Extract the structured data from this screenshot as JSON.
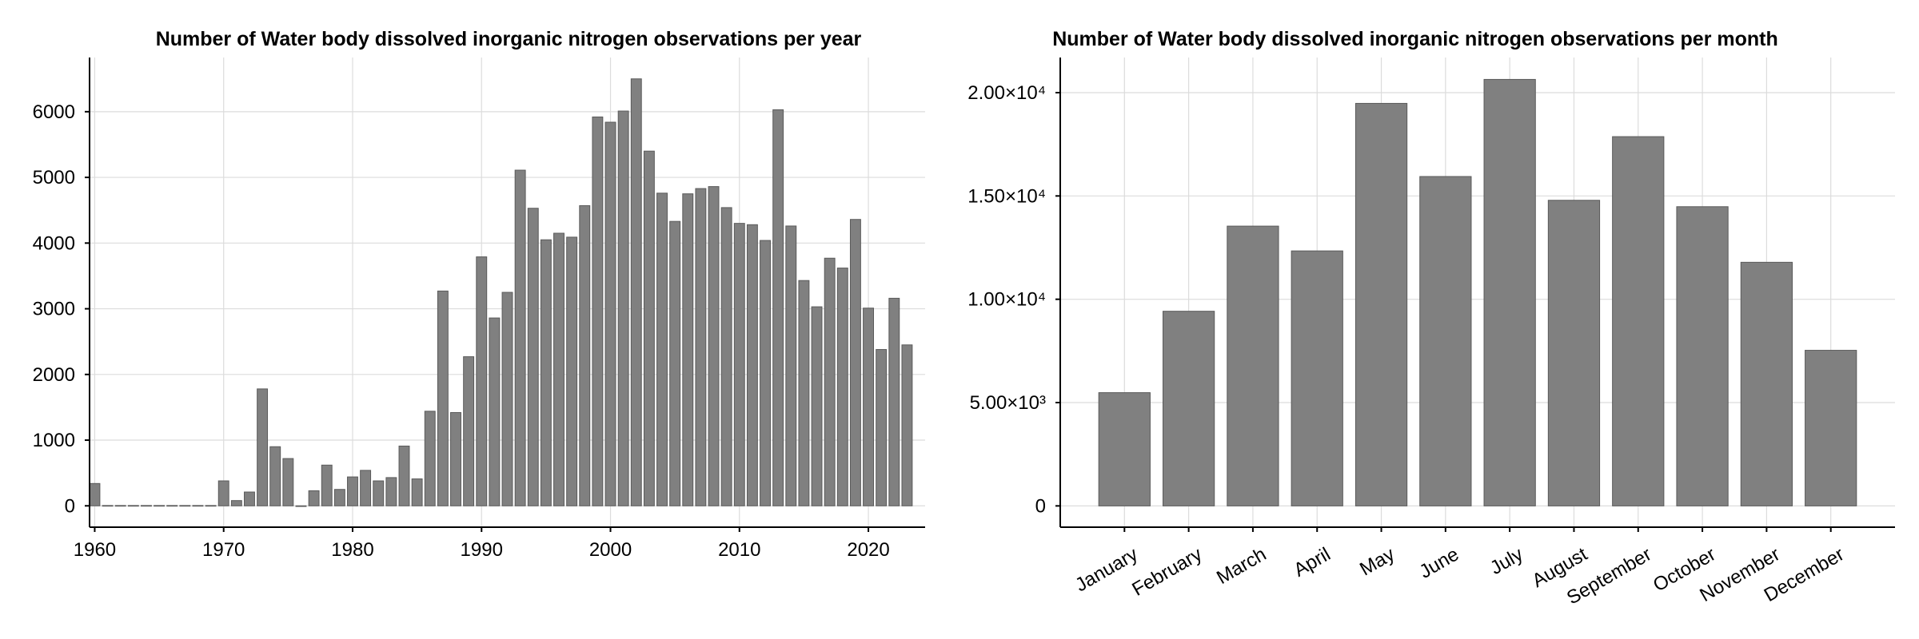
{
  "chart_data": [
    {
      "type": "bar",
      "title": "Number of Water body dissolved inorganic nitrogen observations per year",
      "xlabel": "",
      "ylabel": "",
      "x": [
        1960,
        1961,
        1962,
        1963,
        1964,
        1965,
        1966,
        1967,
        1968,
        1969,
        1970,
        1971,
        1972,
        1973,
        1974,
        1975,
        1976,
        1977,
        1978,
        1979,
        1980,
        1981,
        1982,
        1983,
        1984,
        1985,
        1986,
        1987,
        1988,
        1989,
        1990,
        1991,
        1992,
        1993,
        1994,
        1995,
        1996,
        1997,
        1998,
        1999,
        2000,
        2001,
        2002,
        2003,
        2004,
        2005,
        2006,
        2007,
        2008,
        2009,
        2010,
        2011,
        2012,
        2013,
        2014,
        2015,
        2016,
        2017,
        2018,
        2019,
        2020,
        2021,
        2022,
        2023
      ],
      "values": [
        340,
        5,
        5,
        5,
        5,
        5,
        5,
        5,
        5,
        5,
        380,
        80,
        210,
        1780,
        900,
        720,
        0,
        230,
        620,
        250,
        440,
        540,
        380,
        430,
        910,
        410,
        1440,
        3270,
        1420,
        2270,
        3790,
        2860,
        3250,
        5110,
        4530,
        4050,
        4150,
        4090,
        4570,
        5920,
        5840,
        6010,
        6500,
        5400,
        4760,
        4330,
        4750,
        4830,
        4860,
        4540,
        4300,
        4280,
        4040,
        6030,
        4260,
        3430,
        3030,
        3770,
        3620,
        4360,
        3010,
        2380,
        3160,
        2450
      ],
      "xticks": [
        "1960",
        "1970",
        "1980",
        "1990",
        "2000",
        "2010",
        "2020"
      ],
      "xtick_values": [
        1960,
        1970,
        1980,
        1990,
        2000,
        2010,
        2020
      ],
      "yticks": [
        "0",
        "1000",
        "2000",
        "3000",
        "4000",
        "5000",
        "6000"
      ],
      "ytick_values": [
        0,
        1000,
        2000,
        3000,
        4000,
        5000,
        6000
      ],
      "xlim": [
        1959.6,
        2024.4
      ],
      "ylim": [
        -325,
        6825
      ],
      "grid": true,
      "color": "#808080"
    },
    {
      "type": "bar",
      "title": "Number of Water body dissolved inorganic nitrogen observations per month",
      "xlabel": "",
      "ylabel": "",
      "categories": [
        "January",
        "February",
        "March",
        "April",
        "May",
        "June",
        "July",
        "August",
        "September",
        "October",
        "November",
        "December"
      ],
      "values": [
        5480,
        9420,
        13540,
        12340,
        19480,
        15940,
        20640,
        14790,
        17870,
        14480,
        11790,
        7530
      ],
      "yticks": [
        "0",
        "5.00×10³",
        "1.00×10⁴",
        "1.50×10⁴",
        "2.00×10⁴"
      ],
      "ytick_values": [
        0,
        5000,
        10000,
        15000,
        20000
      ],
      "ylim": [
        -1030,
        21700
      ],
      "grid": true,
      "color": "#808080"
    }
  ]
}
